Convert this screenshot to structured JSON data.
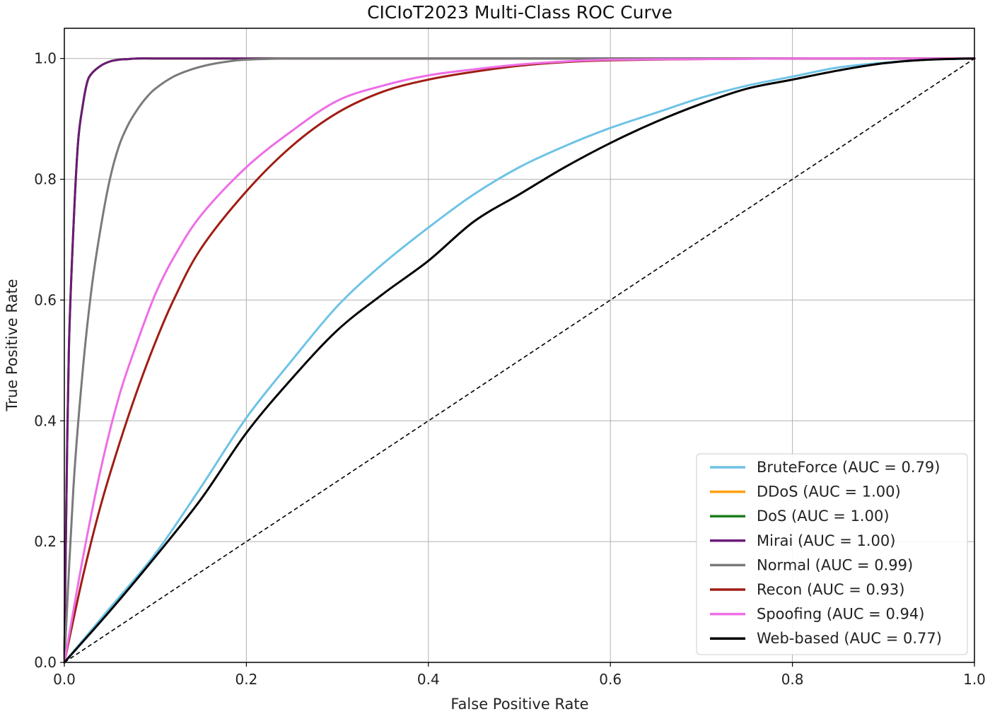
{
  "chart_data": {
    "type": "line",
    "title": "CICIoT2023 Multi-Class ROC Curve",
    "xlabel": "False Positive Rate",
    "ylabel": "True Positive Rate",
    "xlim": [
      0.0,
      1.0
    ],
    "ylim": [
      0.0,
      1.05
    ],
    "xticks": [
      "0.0",
      "0.2",
      "0.4",
      "0.6",
      "0.8",
      "1.0"
    ],
    "yticks": [
      "0.0",
      "0.2",
      "0.4",
      "0.6",
      "0.8",
      "1.0"
    ],
    "grid": true,
    "legend_position": "lower-right",
    "baseline": {
      "x": [
        0,
        1
      ],
      "y": [
        0,
        1
      ],
      "style": "dashed",
      "color": "#000000"
    },
    "series": [
      {
        "name": "BruteForce (AUC = 0.79)",
        "color": "#6ec3e6",
        "x": [
          0,
          0.05,
          0.1,
          0.15,
          0.2,
          0.25,
          0.3,
          0.35,
          0.4,
          0.45,
          0.5,
          0.55,
          0.6,
          0.65,
          0.7,
          0.75,
          0.8,
          0.85,
          0.9,
          0.95,
          1.0
        ],
        "y": [
          0,
          0.09,
          0.18,
          0.29,
          0.405,
          0.5,
          0.59,
          0.66,
          0.72,
          0.775,
          0.82,
          0.855,
          0.885,
          0.91,
          0.935,
          0.955,
          0.97,
          0.985,
          0.993,
          0.998,
          1.0
        ]
      },
      {
        "name": "DDoS (AUC = 1.00)",
        "color": "#ff9f0f",
        "x": [
          0,
          0.002,
          0.005,
          0.01,
          0.015,
          0.02,
          0.025,
          0.03,
          0.04,
          0.05,
          0.06,
          0.07,
          0.08,
          0.1,
          0.15,
          0.2,
          0.4,
          0.6,
          0.8,
          1.0
        ],
        "y": [
          0,
          0.24,
          0.52,
          0.72,
          0.86,
          0.92,
          0.96,
          0.975,
          0.988,
          0.995,
          0.998,
          0.999,
          1.0,
          1.0,
          1.0,
          1.0,
          1.0,
          1.0,
          1.0,
          1.0
        ]
      },
      {
        "name": "DoS (AUC = 1.00)",
        "color": "#1e7d1e",
        "x": [
          0,
          0.002,
          0.005,
          0.01,
          0.015,
          0.02,
          0.025,
          0.03,
          0.04,
          0.05,
          0.06,
          0.07,
          0.08,
          0.1,
          0.15,
          0.2,
          0.4,
          0.6,
          0.8,
          1.0
        ],
        "y": [
          0,
          0.24,
          0.52,
          0.72,
          0.86,
          0.92,
          0.96,
          0.975,
          0.988,
          0.995,
          0.998,
          0.999,
          1.0,
          1.0,
          1.0,
          1.0,
          1.0,
          1.0,
          1.0,
          1.0
        ]
      },
      {
        "name": "Mirai (AUC = 1.00)",
        "color": "#6b1a78",
        "x": [
          0,
          0.002,
          0.005,
          0.01,
          0.015,
          0.02,
          0.025,
          0.03,
          0.04,
          0.05,
          0.06,
          0.07,
          0.08,
          0.1,
          0.15,
          0.2,
          0.4,
          0.6,
          0.8,
          1.0
        ],
        "y": [
          0,
          0.24,
          0.52,
          0.72,
          0.86,
          0.92,
          0.96,
          0.975,
          0.988,
          0.995,
          0.998,
          0.999,
          1.0,
          1.0,
          1.0,
          1.0,
          1.0,
          1.0,
          1.0,
          1.0
        ]
      },
      {
        "name": "Normal (AUC = 0.99)",
        "color": "#7a7a7a",
        "x": [
          0,
          0.01,
          0.02,
          0.03,
          0.04,
          0.05,
          0.06,
          0.07,
          0.08,
          0.09,
          0.1,
          0.12,
          0.14,
          0.16,
          0.18,
          0.2,
          0.25,
          0.3,
          0.4,
          0.6,
          0.8,
          1.0
        ],
        "y": [
          0,
          0.29,
          0.48,
          0.62,
          0.72,
          0.8,
          0.855,
          0.89,
          0.915,
          0.935,
          0.95,
          0.97,
          0.982,
          0.99,
          0.995,
          0.998,
          1.0,
          1.0,
          1.0,
          1.0,
          1.0,
          1.0
        ]
      },
      {
        "name": "Recon (AUC = 0.93)",
        "color": "#a01d14",
        "x": [
          0,
          0.02,
          0.04,
          0.06,
          0.08,
          0.1,
          0.12,
          0.15,
          0.2,
          0.25,
          0.3,
          0.35,
          0.4,
          0.45,
          0.5,
          0.55,
          0.6,
          0.7,
          0.8,
          0.9,
          1.0
        ],
        "y": [
          0,
          0.14,
          0.26,
          0.36,
          0.45,
          0.53,
          0.6,
          0.685,
          0.78,
          0.855,
          0.91,
          0.945,
          0.965,
          0.978,
          0.988,
          0.994,
          0.997,
          0.999,
          1.0,
          1.0,
          1.0
        ]
      },
      {
        "name": "Spoofing (AUC = 0.94)",
        "color": "#ee6ee6",
        "x": [
          0,
          0.02,
          0.04,
          0.06,
          0.08,
          0.1,
          0.12,
          0.15,
          0.2,
          0.25,
          0.3,
          0.35,
          0.4,
          0.45,
          0.5,
          0.55,
          0.6,
          0.7,
          0.8,
          0.9,
          1.0
        ],
        "y": [
          0,
          0.17,
          0.32,
          0.44,
          0.53,
          0.61,
          0.67,
          0.74,
          0.82,
          0.88,
          0.93,
          0.955,
          0.972,
          0.982,
          0.99,
          0.995,
          0.998,
          0.999,
          1.0,
          1.0,
          1.0
        ]
      },
      {
        "name": "Web-based (AUC = 0.77)",
        "color": "#000000",
        "x": [
          0,
          0.05,
          0.1,
          0.15,
          0.2,
          0.25,
          0.3,
          0.35,
          0.4,
          0.45,
          0.5,
          0.55,
          0.6,
          0.65,
          0.7,
          0.75,
          0.8,
          0.85,
          0.9,
          0.95,
          1.0
        ],
        "y": [
          0,
          0.085,
          0.175,
          0.27,
          0.38,
          0.47,
          0.55,
          0.61,
          0.665,
          0.73,
          0.775,
          0.82,
          0.86,
          0.895,
          0.925,
          0.95,
          0.965,
          0.98,
          0.992,
          0.998,
          1.0
        ]
      }
    ]
  }
}
